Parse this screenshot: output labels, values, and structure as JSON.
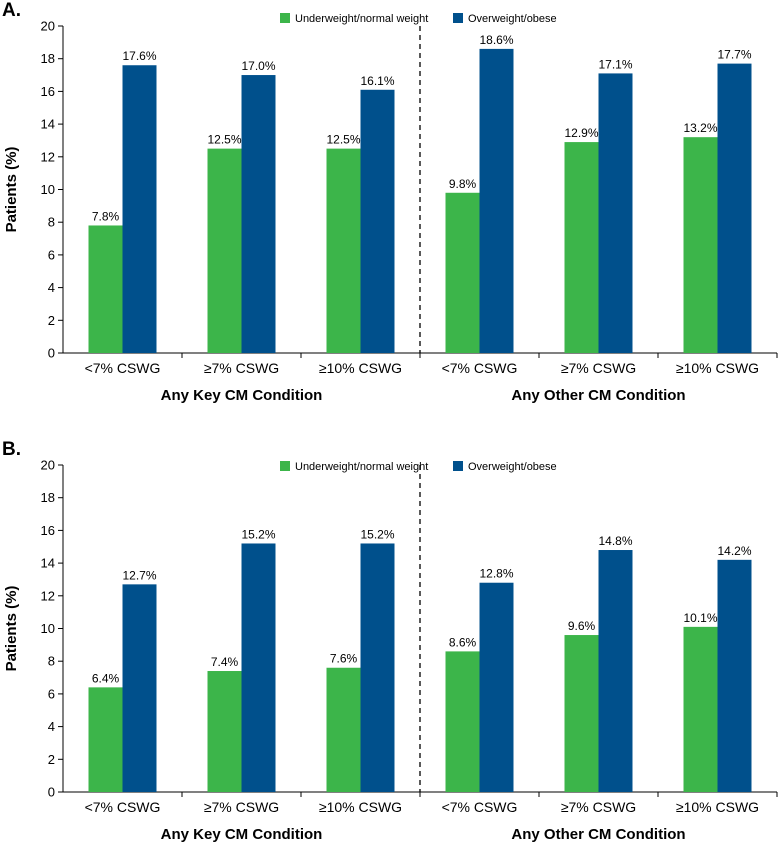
{
  "legend": {
    "underweight": "Underweight/normal weight",
    "overweight": "Overweight/obese"
  },
  "colors": {
    "underweight": "#3cb54a",
    "overweight": "#00508c"
  },
  "chart_data": [
    {
      "type": "bar",
      "panel_label": "A.",
      "ylabel": "Patients (%)",
      "ylim": [
        0,
        20
      ],
      "yticks": [
        "0",
        "2",
        "4",
        "6",
        "8",
        "10",
        "12",
        "14",
        "16",
        "18",
        "20"
      ],
      "groups": [
        "Any Key CM Condition",
        "Any Other CM Condition"
      ],
      "categories": [
        "<7% CSWG",
        "≥7% CSWG",
        "≥10% CSWG",
        "<7% CSWG",
        "≥7% CSWG",
        "≥10% CSWG"
      ],
      "series": [
        {
          "name": "Underweight/normal weight",
          "values": [
            7.8,
            12.5,
            12.5,
            9.8,
            12.9,
            13.2
          ],
          "labels": [
            "7.8%",
            "12.5%",
            "12.5%",
            "9.8%",
            "12.9%",
            "13.2%"
          ]
        },
        {
          "name": "Overweight/obese",
          "values": [
            17.6,
            17.0,
            16.1,
            18.6,
            17.1,
            17.7
          ],
          "labels": [
            "17.6%",
            "17.0%",
            "16.1%",
            "18.6%",
            "17.1%",
            "17.7%"
          ]
        }
      ]
    },
    {
      "type": "bar",
      "panel_label": "B.",
      "ylabel": "Patients (%)",
      "ylim": [
        0,
        20
      ],
      "yticks": [
        "0",
        "2",
        "4",
        "6",
        "8",
        "10",
        "12",
        "14",
        "16",
        "18",
        "20"
      ],
      "groups": [
        "Any Key CM Condition",
        "Any Other CM Condition"
      ],
      "categories": [
        "<7% CSWG",
        "≥7% CSWG",
        "≥10% CSWG",
        "<7% CSWG",
        "≥7% CSWG",
        "≥10% CSWG"
      ],
      "series": [
        {
          "name": "Underweight/normal weight",
          "values": [
            6.4,
            7.4,
            7.6,
            8.6,
            9.6,
            10.1
          ],
          "labels": [
            "6.4%",
            "7.4%",
            "7.6%",
            "8.6%",
            "9.6%",
            "10.1%"
          ]
        },
        {
          "name": "Overweight/obese",
          "values": [
            12.7,
            15.2,
            15.2,
            12.8,
            14.8,
            14.2
          ],
          "labels": [
            "12.7%",
            "15.2%",
            "15.2%",
            "12.8%",
            "14.8%",
            "14.2%"
          ]
        }
      ]
    }
  ]
}
